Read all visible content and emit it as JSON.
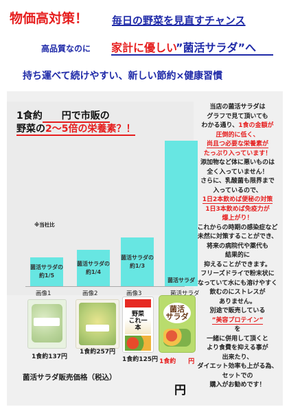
{
  "header": {
    "title_red": "物価高対策！",
    "title_blue": "毎日の野菜を見直すチャンス",
    "line2_prefix": "高品質なのに",
    "line2_red": "家計に優しい",
    "line2_blue": "”菌活サラダ”へ",
    "line3": "持ち運べて続けやすい、新しい節約×健康習慣"
  },
  "chart": {
    "headline_line1_a": "1食約",
    "headline_line1_b": "　　円で市販の",
    "headline_line2_a": "野菜の",
    "headline_line2_red": "2～5倍の栄養素？！",
    "note": "※当社比"
  },
  "chart_data": {
    "type": "bar",
    "categories": [
      "画像1",
      "画像2",
      "画像3",
      "菌活サラダ"
    ],
    "values": [
      0.2,
      0.25,
      0.333,
      1.0
    ],
    "bar_labels": [
      "菌活サラダの約1/5",
      "菌活サラダの約1/4",
      "菌活サラダの約1/3",
      "菌活サラダ"
    ],
    "title": "",
    "xlabel": "",
    "ylabel": ""
  },
  "products": [
    {
      "caption": "1食約137円",
      "icon": "cabbage-salad-pack-icon"
    },
    {
      "caption": "1食約257円",
      "icon": "corn-salad-pack-icon"
    },
    {
      "caption": "1食約125円",
      "icon": "vegetable-juice-icon"
    },
    {
      "caption": "1食約　　円",
      "icon": "kinkatsu-salad-bag-icon"
    }
  ],
  "side": {
    "lines": [
      {
        "text": "当店の菌活サラダは",
        "style": ""
      },
      {
        "text": "グラフで見て頂いても",
        "style": ""
      },
      {
        "text": "わかる通り、",
        "style": "",
        "tail": "1食の金額が",
        "tail_style": "red"
      },
      {
        "text": "圧倒的に低く、",
        "style": "red"
      },
      {
        "text": "尚且つ必要な栄養素が",
        "style": "red ul"
      },
      {
        "text": "たっぷり入っています！",
        "style": "red"
      },
      {
        "text": "添加物など体に悪いものは",
        "style": ""
      },
      {
        "text": "全く入っていません！",
        "style": ""
      },
      {
        "text": "さらに、乳酸菌も限界まで",
        "style": ""
      },
      {
        "text": "入っているので、",
        "style": ""
      },
      {
        "text": "1日2本飲めば便秘の対策",
        "style": "red ul"
      },
      {
        "text": "1日3本飲めば免疫力が",
        "style": "red"
      },
      {
        "text": "爆上がり！",
        "style": "red"
      },
      {
        "text": "これからの時期の感染症など",
        "style": ""
      },
      {
        "text": "未然に対策することができ、",
        "style": ""
      },
      {
        "text": "将来の病院代や薬代も",
        "style": ""
      },
      {
        "text": "結果的に",
        "style": ""
      },
      {
        "text": "抑えることができます。",
        "style": ""
      },
      {
        "text": " ",
        "style": ""
      },
      {
        "text": "フリーズドライで粉末状に",
        "style": ""
      },
      {
        "text": "なっていて水にも溶けやすく",
        "style": ""
      },
      {
        "text": "飲むのにストレスが",
        "style": ""
      },
      {
        "text": "ありません。",
        "style": ""
      },
      {
        "text": "別途で販売している",
        "style": ""
      },
      {
        "text": "”美容プロテイン”",
        "style": "red ul"
      },
      {
        "text": "を",
        "style": ""
      },
      {
        "text": "一緒に併用して頂くと",
        "style": ""
      },
      {
        "text": "より食費を抑える事が",
        "style": ""
      },
      {
        "text": "出来たり、",
        "style": ""
      },
      {
        "text": "ダイエット効率も上がる為、",
        "style": ""
      },
      {
        "text": "セットでの",
        "style": ""
      },
      {
        "text": "購入がお勧めです！",
        "style": ""
      }
    ]
  },
  "footer": {
    "label": "菌活サラダ販売価格（税込）",
    "yen": "円"
  },
  "colors": {
    "red": "#e61e1e",
    "blue": "#1f2aa8",
    "bar": "#67e6e2",
    "band": "#f0f0f0"
  }
}
